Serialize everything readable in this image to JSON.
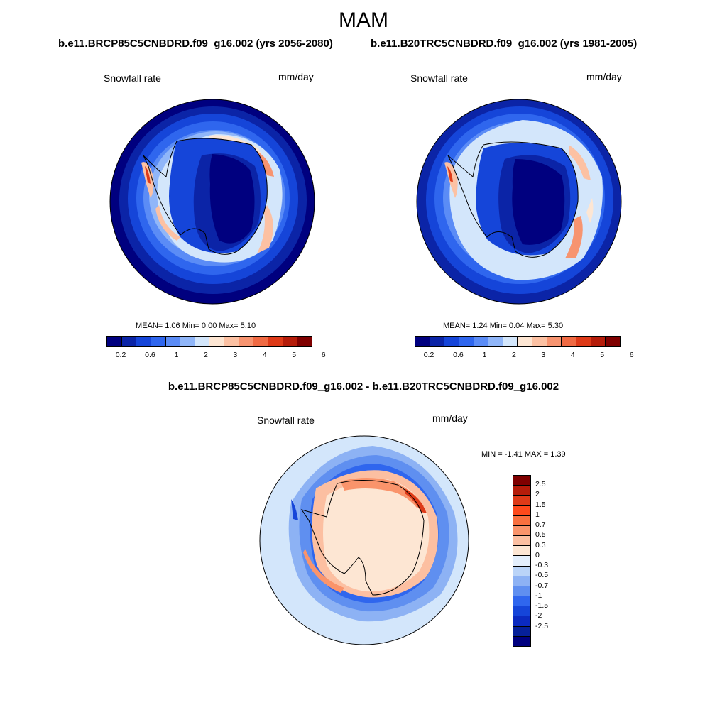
{
  "figure": {
    "title": "MAM",
    "left_case": "b.e11.BRCP85C5CNBDRD.f09_g16.002 (yrs 2056-2080)",
    "right_case": "b.e11.B20TRC5CNBDRD.f09_g16.002 (yrs 1981-2005)",
    "diff_title": "b.e11.BRCP85C5CNBDRD.f09_g16.002 - b.e11.B20TRC5CNBDRD.f09_g16.002"
  },
  "panels": {
    "left": {
      "variable": "Snowfall rate",
      "units": "mm/day",
      "stats": "MEAN=   1.06  Min=   0.00  Max=   5.10",
      "mean": 1.06,
      "min": 0.0,
      "max": 5.1
    },
    "right": {
      "variable": "Snowfall rate",
      "units": "mm/day",
      "stats": "MEAN=   1.24  Min=   0.04  Max=   5.30",
      "mean": 1.24,
      "min": 0.04,
      "max": 5.3
    },
    "diff": {
      "variable": "Snowfall rate",
      "units": "mm/day",
      "stats": "MIN =  -1.41 MAX =   1.39",
      "min": -1.41,
      "max": 1.39
    }
  },
  "colorbar_abs": {
    "colors": [
      "#00007f",
      "#0b24a7",
      "#1545d9",
      "#2f66ee",
      "#5b8cf6",
      "#90b6f9",
      "#d3e6fb",
      "#fde6d3",
      "#fcc1a3",
      "#f79470",
      "#f06a43",
      "#de3a18",
      "#b51c0a",
      "#7f0000"
    ],
    "tick_labels": [
      "0.2",
      "0.6",
      "1",
      "2",
      "3",
      "4",
      "5",
      "6"
    ]
  },
  "colorbar_diff": {
    "colors": [
      "#7f0000",
      "#b51c0a",
      "#de3a18",
      "#fe4a1c",
      "#f9703f",
      "#fa946b",
      "#fcbfa1",
      "#fde6d3",
      "#e4effc",
      "#bad4f8",
      "#8db2f4",
      "#5f8ff0",
      "#2f66ee",
      "#1545d9",
      "#0b2ac0",
      "#062099",
      "#00007f"
    ],
    "tick_labels": [
      "2.5",
      "2",
      "1.5",
      "1",
      "0.7",
      "0.5",
      "0.3",
      "0",
      "-0.3",
      "-0.5",
      "-0.7",
      "-1",
      "-1.5",
      "-2",
      "-2.5"
    ]
  }
}
